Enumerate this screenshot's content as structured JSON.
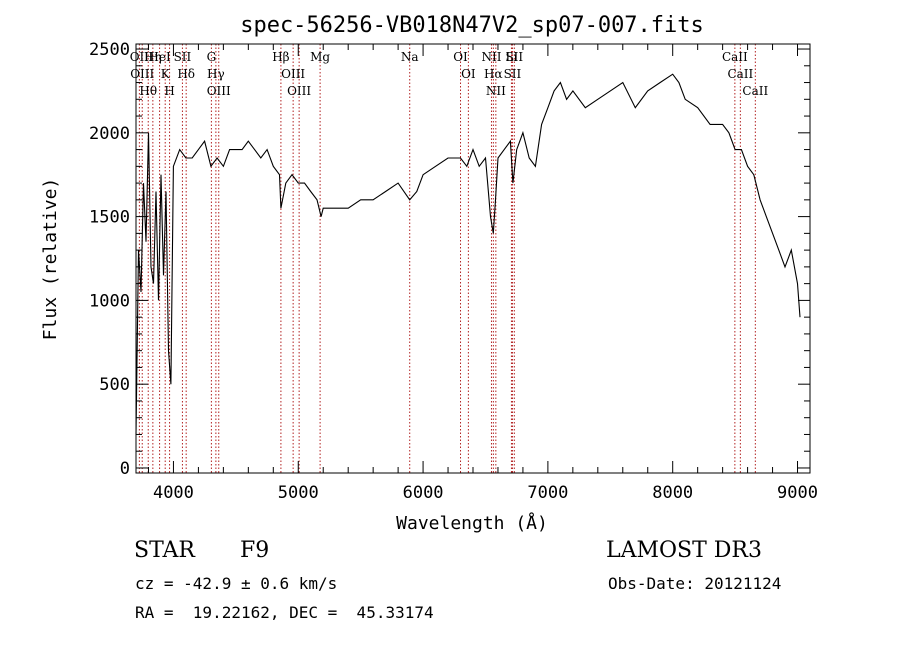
{
  "chart_data": {
    "type": "line",
    "title": "spec-56256-VB018N47V2_sp07-007.fits",
    "xlabel": "Wavelength (Å)",
    "ylabel": "Flux (relative)",
    "xlim": [
      3700,
      9100
    ],
    "ylim": [
      -30,
      2530
    ],
    "xticks": [
      4000,
      5000,
      6000,
      7000,
      8000,
      9000
    ],
    "yticks": [
      0,
      500,
      1000,
      1500,
      2000,
      2500
    ],
    "grid": false,
    "line_color": "#000000",
    "marker_color": "#b22222",
    "series": [
      {
        "x": [
          3700,
          3720,
          3740,
          3760,
          3780,
          3800,
          3820,
          3840,
          3860,
          3880,
          3900,
          3920,
          3940,
          3960,
          3980,
          4000,
          4050,
          4100,
          4150,
          4200,
          4250,
          4300,
          4350,
          4400,
          4450,
          4500,
          4550,
          4600,
          4650,
          4700,
          4750,
          4800,
          4850,
          4861,
          4900,
          4950,
          5000,
          5050,
          5100,
          5150,
          5183,
          5200,
          5300,
          5400,
          5500,
          5600,
          5700,
          5800,
          5893,
          5950,
          6000,
          6100,
          6200,
          6300,
          6350,
          6400,
          6450,
          6500,
          6540,
          6563,
          6580,
          6600,
          6650,
          6700,
          6720,
          6750,
          6800,
          6850,
          6900,
          6950,
          7000,
          7050,
          7100,
          7150,
          7200,
          7300,
          7400,
          7500,
          7600,
          7700,
          7800,
          7900,
          8000,
          8050,
          8100,
          8200,
          8300,
          8400,
          8450,
          8500,
          8550,
          8600,
          8650,
          8700,
          8750,
          8800,
          8850,
          8900,
          8950,
          9000,
          9020
        ],
        "values": [
          200,
          1300,
          1050,
          1700,
          1350,
          2000,
          1200,
          1100,
          1650,
          1000,
          1750,
          1150,
          1650,
          700,
          500,
          1800,
          1900,
          1850,
          1850,
          1900,
          1950,
          1800,
          1850,
          1800,
          1900,
          1900,
          1900,
          1950,
          1900,
          1850,
          1900,
          1800,
          1750,
          1550,
          1700,
          1750,
          1700,
          1700,
          1650,
          1600,
          1500,
          1550,
          1550,
          1550,
          1600,
          1600,
          1650,
          1700,
          1600,
          1650,
          1750,
          1800,
          1850,
          1850,
          1800,
          1900,
          1800,
          1850,
          1500,
          1400,
          1600,
          1850,
          1900,
          1950,
          1700,
          1900,
          2000,
          1850,
          1800,
          2050,
          2150,
          2250,
          2300,
          2200,
          2250,
          2150,
          2200,
          2250,
          2300,
          2150,
          2250,
          2300,
          2350,
          2300,
          2200,
          2150,
          2050,
          2050,
          2000,
          1900,
          1900,
          1800,
          1750,
          1600,
          1500,
          1400,
          1300,
          1200,
          1300,
          1100,
          900
        ]
      }
    ],
    "line_markers": [
      {
        "x": 3727,
        "label": "OII"
      },
      {
        "x": 3750,
        "label": "OIII"
      },
      {
        "x": 3798,
        "label": "Hθ"
      },
      {
        "x": 3835,
        "label": "Hη"
      },
      {
        "x": 3889,
        "label": "HeI"
      },
      {
        "x": 3934,
        "label": "K"
      },
      {
        "x": 3969,
        "label": "H"
      },
      {
        "x": 4072,
        "label": "SII"
      },
      {
        "x": 4102,
        "label": "Hδ"
      },
      {
        "x": 4304,
        "label": "G"
      },
      {
        "x": 4340,
        "label": "Hγ"
      },
      {
        "x": 4363,
        "label": "OIII"
      },
      {
        "x": 4861,
        "label": "Hβ"
      },
      {
        "x": 4959,
        "label": "OIII"
      },
      {
        "x": 5007,
        "label": "OIII"
      },
      {
        "x": 5175,
        "label": "Mg"
      },
      {
        "x": 5893,
        "label": "Na"
      },
      {
        "x": 6300,
        "label": "OI"
      },
      {
        "x": 6363,
        "label": "OI"
      },
      {
        "x": 6548,
        "label": "NII"
      },
      {
        "x": 6563,
        "label": "Hα"
      },
      {
        "x": 6583,
        "label": "NII"
      },
      {
        "x": 6708,
        "label": "Li"
      },
      {
        "x": 6716,
        "label": "SII"
      },
      {
        "x": 6731,
        "label": "SII"
      },
      {
        "x": 8498,
        "label": "CaII"
      },
      {
        "x": 8542,
        "label": "CaII"
      },
      {
        "x": 8662,
        "label": "CaII"
      }
    ]
  },
  "footer": {
    "object_type": "STAR",
    "subclass": "F9",
    "survey": "LAMOST DR3",
    "redshift": "cz = -42.9 ± 0.6 km/s",
    "obs_date": "Obs-Date: 20121124",
    "coords": "RA =  19.22162, DEC =  45.33174"
  }
}
